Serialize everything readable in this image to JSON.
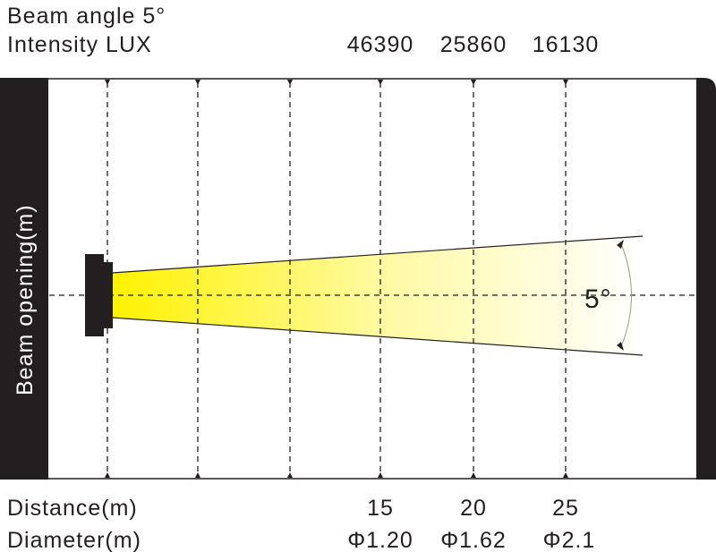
{
  "header": {
    "beam_angle_label": "Beam angle 5°",
    "intensity_label": "Intensity LUX"
  },
  "axis": {
    "vertical_label": "Beam opening(m)",
    "distance_label": "Distance(m)",
    "diameter_label": "Diameter(m)"
  },
  "beam_angle_marker": "5°",
  "measurements": [
    {
      "distance": "15",
      "diameter": "Φ1.20",
      "lux": "46390"
    },
    {
      "distance": "20",
      "diameter": "Φ1.62",
      "lux": "25860"
    },
    {
      "distance": "25",
      "diameter": "Φ2.1",
      "lux": "16130"
    }
  ],
  "colors": {
    "beam_start": "#fff200",
    "beam_end": "#ffffff",
    "frame": "#231f20"
  }
}
